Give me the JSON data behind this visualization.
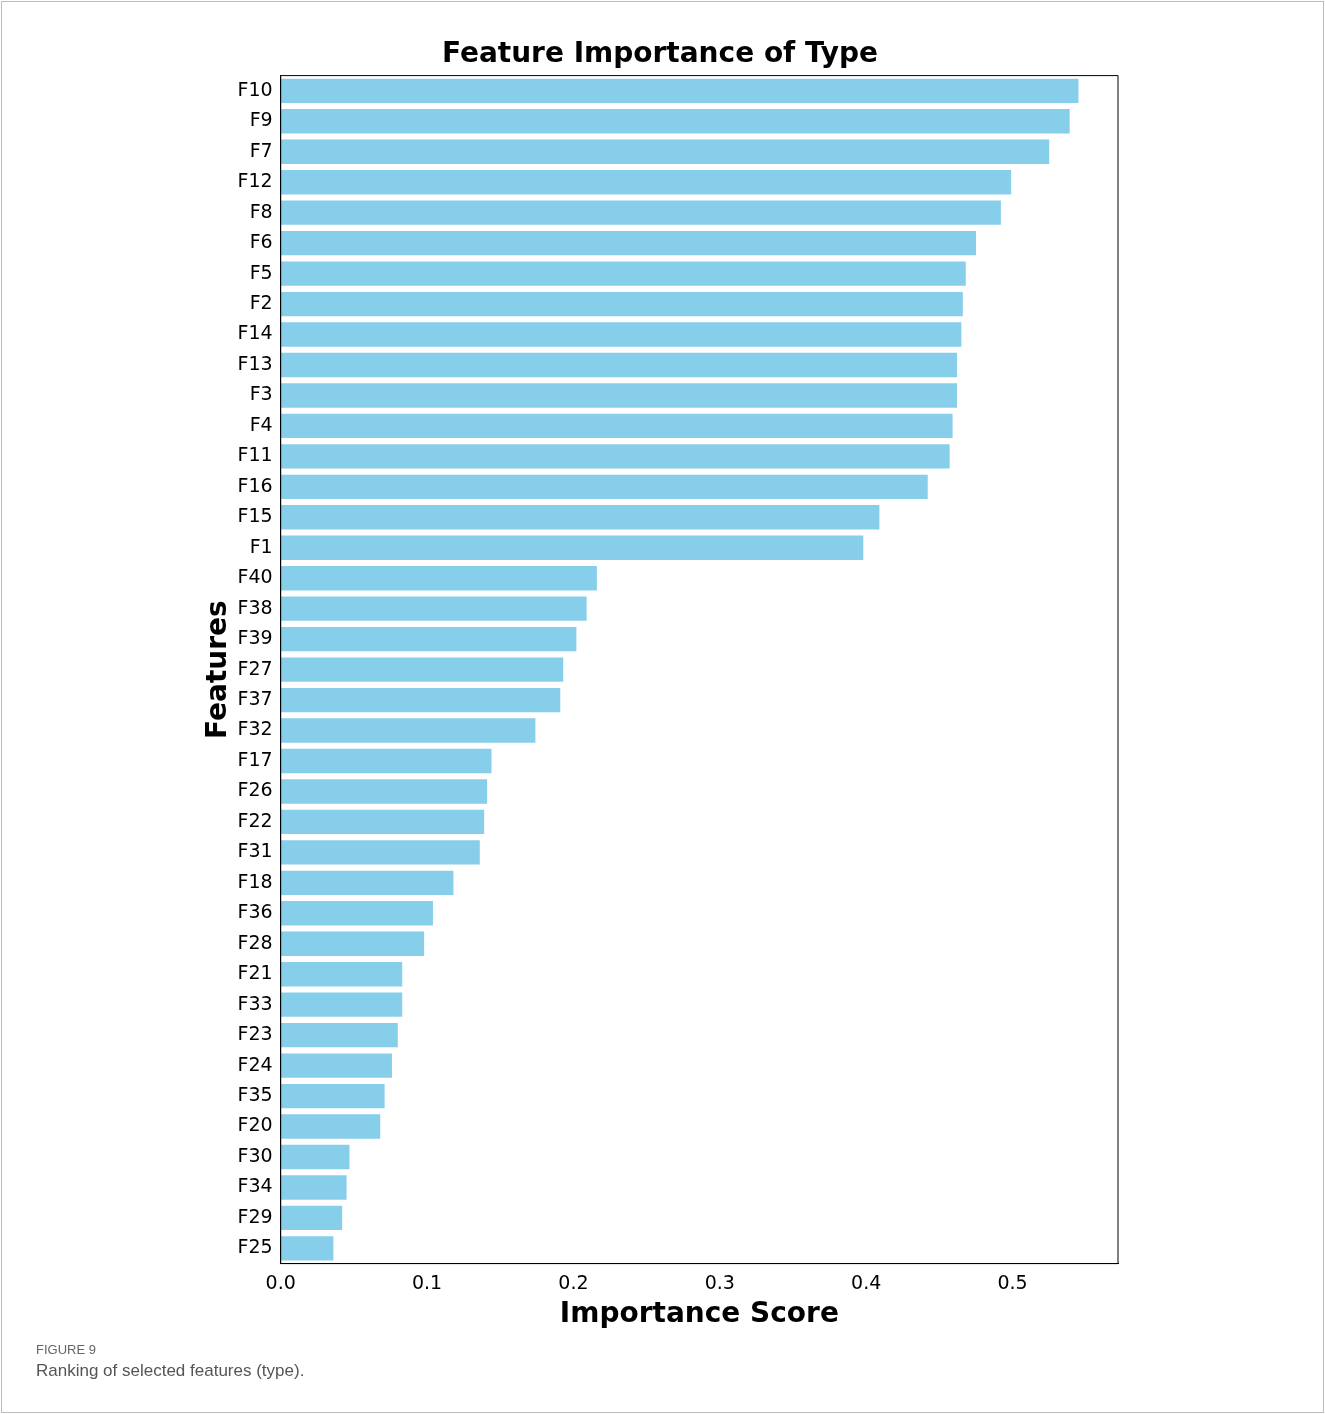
{
  "chart_data": {
    "type": "bar",
    "orientation": "horizontal",
    "title": "Feature Importance of Type",
    "xlabel": "Importance Score",
    "ylabel": "Features",
    "categories": [
      "F10",
      "F9",
      "F7",
      "F12",
      "F8",
      "F6",
      "F5",
      "F2",
      "F14",
      "F13",
      "F3",
      "F4",
      "F11",
      "F16",
      "F15",
      "F1",
      "F40",
      "F38",
      "F39",
      "F27",
      "F37",
      "F32",
      "F17",
      "F26",
      "F22",
      "F31",
      "F18",
      "F36",
      "F28",
      "F21",
      "F33",
      "F23",
      "F24",
      "F35",
      "F20",
      "F30",
      "F34",
      "F29",
      "F25"
    ],
    "values": [
      0.545,
      0.539,
      0.525,
      0.499,
      0.492,
      0.475,
      0.468,
      0.466,
      0.465,
      0.462,
      0.462,
      0.459,
      0.457,
      0.442,
      0.409,
      0.398,
      0.216,
      0.209,
      0.202,
      0.193,
      0.191,
      0.174,
      0.144,
      0.141,
      0.139,
      0.136,
      0.118,
      0.104,
      0.098,
      0.083,
      0.083,
      0.08,
      0.076,
      0.071,
      0.068,
      0.047,
      0.045,
      0.042,
      0.036
    ],
    "color": "#87ceeb",
    "xlim": [
      0,
      0.572
    ],
    "xticks": [
      {
        "value": 0,
        "label": "0.0"
      },
      {
        "value": 0.1,
        "label": "0.1"
      },
      {
        "value": 0.2,
        "label": "0.2"
      },
      {
        "value": 0.3,
        "label": "0.3"
      },
      {
        "value": 0.4,
        "label": "0.4"
      },
      {
        "value": 0.5,
        "label": "0.5"
      }
    ],
    "grid": false,
    "legend": false,
    "annotations": [
      "FIGURE 9",
      "Ranking of selected features (type)."
    ]
  }
}
